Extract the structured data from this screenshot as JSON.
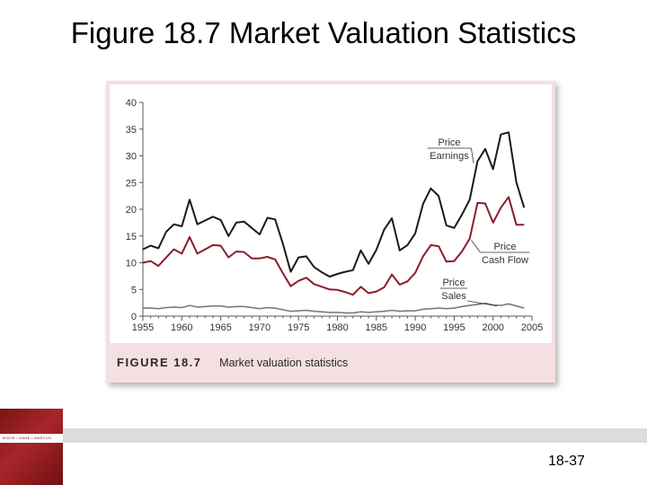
{
  "slide": {
    "title": "Figure 18.7 Market Valuation Statistics",
    "page_number": "18-37",
    "logo_text": "BODIE • KANE • MARCUS"
  },
  "figure": {
    "number_label": "FIGURE 18.7",
    "caption": "Market valuation statistics"
  },
  "colors": {
    "pe_line": "#1a1a1a",
    "pcf_line": "#8b1d2c",
    "ps_line": "#7a7a7a",
    "panel": "#f4dfe2",
    "logo": "#8b1a1a"
  },
  "chart_data": {
    "type": "line",
    "title": "",
    "xlabel": "",
    "ylabel": "",
    "xlim": [
      1955,
      2005
    ],
    "ylim": [
      0,
      40
    ],
    "x_ticks": [
      1955,
      1960,
      1965,
      1970,
      1975,
      1980,
      1985,
      1990,
      1995,
      2000,
      2005
    ],
    "y_ticks": [
      0,
      5,
      10,
      15,
      20,
      25,
      30,
      35,
      40
    ],
    "grid": false,
    "legend": "inline labels",
    "series": [
      {
        "name": "Price / Earnings",
        "label_top": "Price",
        "label_bottom": "Earnings",
        "x": [
          1955,
          1956,
          1957,
          1958,
          1959,
          1960,
          1961,
          1962,
          1963,
          1964,
          1965,
          1966,
          1967,
          1968,
          1969,
          1970,
          1971,
          1972,
          1973,
          1974,
          1975,
          1976,
          1977,
          1978,
          1979,
          1980,
          1981,
          1982,
          1983,
          1984,
          1985,
          1986,
          1987,
          1988,
          1989,
          1990,
          1991,
          1992,
          1993,
          1994,
          1995,
          1996,
          1997,
          1998,
          1999,
          2000,
          2001,
          2002,
          2003,
          2004
        ],
        "values": [
          12.5,
          13.2,
          12.7,
          15.8,
          17.2,
          16.8,
          21.8,
          17.2,
          17.9,
          18.6,
          18.0,
          15.0,
          17.5,
          17.7,
          16.5,
          15.3,
          18.4,
          18.1,
          13.5,
          8.3,
          11.0,
          11.2,
          9.2,
          8.2,
          7.4,
          7.9,
          8.3,
          8.6,
          12.3,
          9.8,
          12.4,
          16.2,
          18.3,
          12.3,
          13.3,
          15.5,
          21.0,
          23.9,
          22.5,
          17.0,
          16.5,
          19.0,
          21.8,
          29.0,
          31.3,
          27.5,
          34.0,
          34.4,
          25.0,
          20.3
        ]
      },
      {
        "name": "Price / Cash Flow",
        "label_top": "Price",
        "label_bottom": "Cash Flow",
        "x": [
          1955,
          1956,
          1957,
          1958,
          1959,
          1960,
          1961,
          1962,
          1963,
          1964,
          1965,
          1966,
          1967,
          1968,
          1969,
          1970,
          1971,
          1972,
          1973,
          1974,
          1975,
          1976,
          1977,
          1978,
          1979,
          1980,
          1981,
          1982,
          1983,
          1984,
          1985,
          1986,
          1987,
          1988,
          1989,
          1990,
          1991,
          1992,
          1993,
          1994,
          1995,
          1996,
          1997,
          1998,
          1999,
          2000,
          2001,
          2002,
          2003,
          2004
        ],
        "values": [
          10.0,
          10.3,
          9.4,
          11.0,
          12.5,
          11.7,
          14.8,
          11.7,
          12.5,
          13.3,
          13.2,
          11.0,
          12.1,
          12.0,
          10.8,
          10.8,
          11.1,
          10.6,
          8.0,
          5.6,
          6.6,
          7.2,
          6.0,
          5.5,
          5.0,
          4.9,
          4.5,
          4.0,
          5.5,
          4.3,
          4.6,
          5.4,
          7.8,
          5.9,
          6.5,
          8.1,
          11.2,
          13.3,
          13.1,
          10.2,
          10.3,
          12.1,
          14.5,
          21.2,
          21.1,
          17.5,
          20.3,
          22.3,
          17.1,
          17.1
        ]
      },
      {
        "name": "Price / Sales",
        "label_top": "Price",
        "label_bottom": "Sales",
        "x": [
          1955,
          1956,
          1957,
          1958,
          1959,
          1960,
          1961,
          1962,
          1963,
          1964,
          1965,
          1966,
          1967,
          1968,
          1969,
          1970,
          1971,
          1972,
          1973,
          1974,
          1975,
          1976,
          1977,
          1978,
          1979,
          1980,
          1981,
          1982,
          1983,
          1984,
          1985,
          1986,
          1987,
          1988,
          1989,
          1990,
          1991,
          1992,
          1993,
          1994,
          1995,
          1996,
          1997,
          1998,
          1999,
          2000,
          2001,
          2002,
          2003,
          2004
        ],
        "values": [
          1.5,
          1.5,
          1.4,
          1.6,
          1.7,
          1.6,
          2.0,
          1.7,
          1.8,
          1.9,
          1.9,
          1.7,
          1.8,
          1.8,
          1.6,
          1.4,
          1.6,
          1.5,
          1.2,
          0.9,
          1.0,
          1.1,
          0.9,
          0.8,
          0.7,
          0.7,
          0.6,
          0.6,
          0.8,
          0.7,
          0.8,
          0.9,
          1.1,
          0.9,
          1.0,
          1.0,
          1.3,
          1.4,
          1.5,
          1.4,
          1.5,
          1.8,
          2.0,
          2.2,
          2.4,
          2.1,
          2.0,
          2.3,
          1.9,
          1.5
        ]
      }
    ]
  }
}
